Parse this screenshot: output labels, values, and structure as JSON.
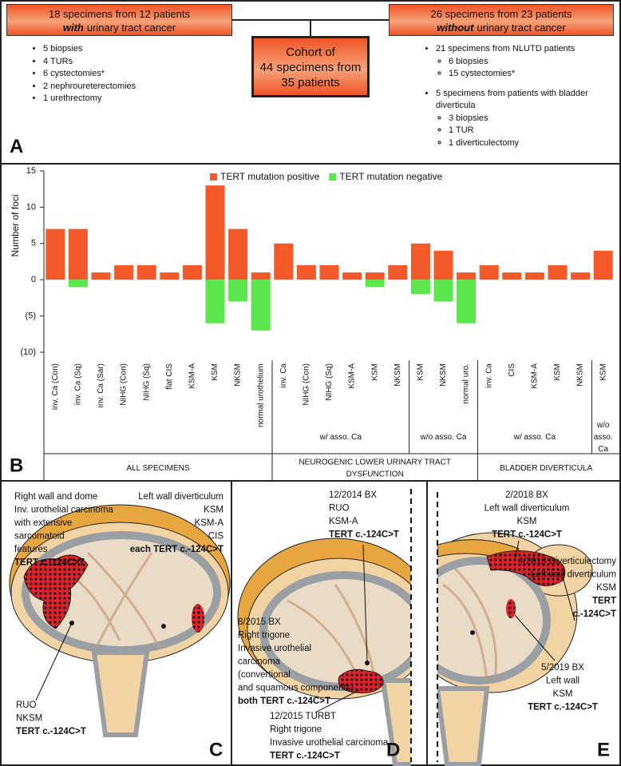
{
  "panel_a": {
    "label": "A",
    "left_box": {
      "line1": "18 specimens from 12 patients",
      "emphasis": "with",
      "line2": "urinary tract cancer"
    },
    "left_list": [
      "5 biopsies",
      "4 TURs",
      "6 cystectomies*",
      "2 nephroureterectomies",
      "1 urethrectomy"
    ],
    "center_box": [
      "Cohort of",
      "44 specimens from",
      "35 patients"
    ],
    "right_box": {
      "line1": "26 specimens from 23 patients",
      "emphasis": "without",
      "line2": "urinary tract cancer"
    },
    "right_list": [
      {
        "text": "21 specimens from NLUTD patients",
        "items": [
          "6 biopsies",
          "15 cystectomies*"
        ]
      },
      {
        "text": "5 specimens from patients with bladder diverticula",
        "items": [
          "3 biopsies",
          "1 TUR",
          "1 diverticulectomy"
        ]
      }
    ]
  },
  "chart_data": {
    "type": "bar",
    "label": "B",
    "y_label": "Number of foci",
    "ylim": [
      -10,
      15
    ],
    "yticks": [
      15,
      10,
      5,
      0,
      {
        "value": -5,
        "label": "(5)"
      },
      {
        "value": -10,
        "label": "(10)"
      }
    ],
    "legend": "top",
    "groups": [
      {
        "label": "ALL SPECIMENS",
        "subgroups": [
          {
            "categories": [
              "inv. Ca (Con)",
              "inv. Ca (Sq)",
              "inv. Ca (Sar)",
              "NIHG (Con)",
              "NIHG (Sq)",
              "flat CIS",
              "KSM-A",
              "KSM",
              "NKSM",
              "normal urothelium"
            ]
          }
        ]
      },
      {
        "label": "NEUROGENIC LOWER URINARY TRACT DYSFUNCTION",
        "subgroups": [
          {
            "label": "w/ asso. Ca",
            "categories": [
              "inv. Ca",
              "NIHG (Con)",
              "NIHG (Sq)",
              "KSM-A",
              "KSM",
              "NKSM"
            ]
          },
          {
            "label": "w/o asso. Ca",
            "categories": [
              "KSM",
              "NKSM",
              "normal uro."
            ]
          }
        ]
      },
      {
        "label": "BLADDER DIVERTICULA",
        "subgroups": [
          {
            "label": "w/ asso. Ca",
            "categories": [
              "inv. Ca",
              "CIS",
              "KSM-A",
              "KSM",
              "NKSM"
            ]
          },
          {
            "label": "w/o asso. Ca",
            "categories": [
              "KSM"
            ]
          }
        ]
      }
    ],
    "series": [
      {
        "name": "TERT mutation positive",
        "color": "#f4592a",
        "values": [
          7,
          7,
          1,
          2,
          2,
          1,
          2,
          13,
          7,
          1,
          5,
          2,
          2,
          1,
          1,
          2,
          5,
          4,
          1,
          2,
          1,
          1,
          2,
          1,
          4
        ]
      },
      {
        "name": "TERT mutation negative",
        "color": "#5ae64c",
        "values": [
          0,
          -1,
          0,
          0,
          0,
          0,
          0,
          -6,
          -3,
          -7,
          0,
          0,
          0,
          0,
          -1,
          0,
          -2,
          -3,
          -6,
          0,
          0,
          0,
          0,
          0,
          0
        ]
      }
    ]
  },
  "panel_c": {
    "label": "C",
    "annotations": [
      {
        "lines": [
          "Right wall and dome",
          "Inv. urothelial carcinoma",
          "with extensive",
          "sarcomatoid",
          "features"
        ],
        "mutation": [
          "TERT c.-124C>T"
        ]
      },
      {
        "lines": [
          "Left wall diverticulum",
          "KSM",
          "KSM-A",
          "CIS"
        ],
        "mutation": [
          "each TERT c.-124C>T"
        ]
      },
      {
        "lines": [
          "RUO",
          "NKSM"
        ],
        "mutation": [
          "TERT c.-124C>T"
        ]
      }
    ]
  },
  "panel_d": {
    "label": "D",
    "annotations": [
      {
        "lines": [
          "12/2014 BX",
          "RUO",
          "KSM-A"
        ],
        "mutation": [
          "TERT c.-124C>T"
        ]
      },
      {
        "lines": [
          "8/2015 BX",
          "Right trigone",
          "Invasive urothelial",
          "carcinoma",
          "(convertional",
          "and squamous components)"
        ],
        "mutation": [
          "both TERT c.-124C>T"
        ]
      },
      {
        "lines": [
          "12/2015 TURBT",
          "Right trigone",
          "Invasive urothelial carcinoma"
        ],
        "mutation": [
          "TERT c.-124C>T"
        ]
      }
    ]
  },
  "panel_e": {
    "label": "E",
    "annotations": [
      {
        "lines": [
          "2/2018 BX",
          "Left wall diverticulum",
          "KSM"
        ],
        "mutation": [
          "TERT c.-124C>T"
        ]
      },
      {
        "lines": [
          "4/2018 Diverticulectomy",
          "Left wall diverticulum",
          "KSM"
        ],
        "mutation": [
          "TERT",
          "c.-124C>T"
        ]
      },
      {
        "lines": [
          "5/2019 BX",
          "Left wall",
          "KSM"
        ],
        "mutation": [
          "TERT c.-124C>T"
        ]
      }
    ]
  }
}
